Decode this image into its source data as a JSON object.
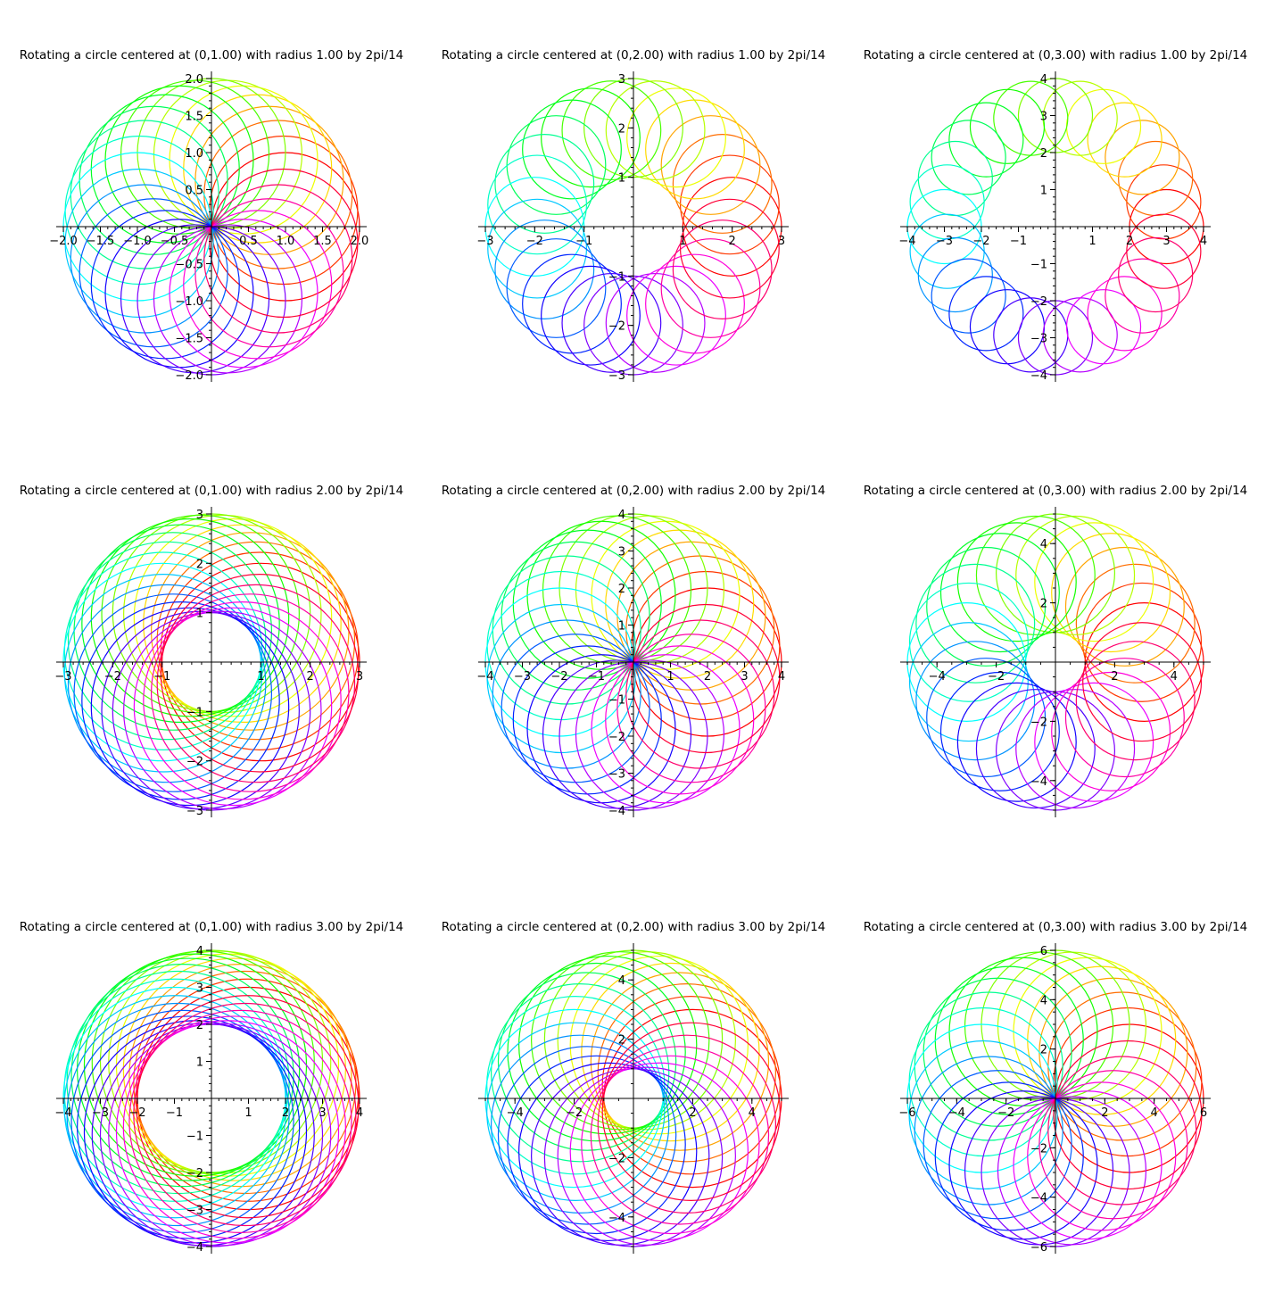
{
  "chart_data": [
    {
      "type": "line",
      "title": "Rotating a circle centered at (0,1.00) with radius 1.00 by 2pi/14",
      "center_offset": 1,
      "radius": 1,
      "rotations": 28,
      "step": "2pi/14",
      "xlim": [
        -2,
        2
      ],
      "ylim": [
        -2,
        2
      ],
      "xticks": [
        -2,
        -1.5,
        -1,
        -0.5,
        0.5,
        1,
        1.5,
        2
      ],
      "xtick_labels": [
        "−2.0",
        "−1.5",
        "−1.0",
        "−0.5",
        "0.5",
        "1.0",
        "1.5",
        "2.0"
      ],
      "yticks": [
        -2,
        -1.5,
        -1,
        -0.5,
        0.5,
        1,
        1.5,
        2
      ],
      "ytick_labels": [
        "−2.0",
        "−1.5",
        "−1.0",
        "−0.5",
        "0.5",
        "1.0",
        "1.5",
        "2.0"
      ],
      "minor": 0.1
    },
    {
      "type": "line",
      "title": "Rotating a circle centered at (0,2.00) with radius 1.00 by 2pi/14",
      "center_offset": 2,
      "radius": 1,
      "rotations": 28,
      "step": "2pi/14",
      "xlim": [
        -3,
        3
      ],
      "ylim": [
        -3,
        3
      ],
      "xticks": [
        -3,
        -2,
        -1,
        1,
        2,
        3
      ],
      "xtick_labels": [
        "−3",
        "−2",
        "−1",
        "1",
        "2",
        "3"
      ],
      "yticks": [
        -3,
        -2,
        -1,
        1,
        2,
        3
      ],
      "ytick_labels": [
        "−3",
        "−2",
        "−1",
        "1",
        "2",
        "3"
      ],
      "minor": 0.2
    },
    {
      "type": "line",
      "title": "Rotating a circle centered at (0,3.00) with radius 1.00 by 2pi/14",
      "center_offset": 3,
      "radius": 1,
      "rotations": 28,
      "step": "2pi/14",
      "xlim": [
        -4,
        4
      ],
      "ylim": [
        -4,
        4
      ],
      "xticks": [
        -4,
        -3,
        -2,
        -1,
        1,
        2,
        3,
        4
      ],
      "xtick_labels": [
        "−4",
        "−3",
        "−2",
        "−1",
        "1",
        "2",
        "3",
        "4"
      ],
      "yticks": [
        -4,
        -3,
        -2,
        -1,
        1,
        2,
        3,
        4
      ],
      "ytick_labels": [
        "−4",
        "−3",
        "−2",
        "−1",
        "1",
        "2",
        "3",
        "4"
      ],
      "minor": 0.2
    },
    {
      "type": "line",
      "title": "Rotating a circle centered at (0,1.00) with radius 2.00 by 2pi/14",
      "center_offset": 1,
      "radius": 2,
      "rotations": 28,
      "step": "2pi/14",
      "xlim": [
        -3,
        3
      ],
      "ylim": [
        -3,
        3
      ],
      "xticks": [
        -3,
        -2,
        -1,
        1,
        2,
        3
      ],
      "xtick_labels": [
        "−3",
        "−2",
        "−1",
        "1",
        "2",
        "3"
      ],
      "yticks": [
        -3,
        -2,
        -1,
        1,
        2,
        3
      ],
      "ytick_labels": [
        "−3",
        "−2",
        "−1",
        "1",
        "2",
        "3"
      ],
      "minor": 0.2
    },
    {
      "type": "line",
      "title": "Rotating a circle centered at (0,2.00) with radius 2.00 by 2pi/14",
      "center_offset": 2,
      "radius": 2,
      "rotations": 28,
      "step": "2pi/14",
      "xlim": [
        -4,
        4
      ],
      "ylim": [
        -4,
        4
      ],
      "xticks": [
        -4,
        -3,
        -2,
        -1,
        1,
        2,
        3,
        4
      ],
      "xtick_labels": [
        "−4",
        "−3",
        "−2",
        "−1",
        "1",
        "2",
        "3",
        "4"
      ],
      "yticks": [
        -4,
        -3,
        -2,
        -1,
        1,
        2,
        3,
        4
      ],
      "ytick_labels": [
        "−4",
        "−3",
        "−2",
        "−1",
        "1",
        "2",
        "3",
        "4"
      ],
      "minor": 0.2
    },
    {
      "type": "line",
      "title": "Rotating a circle centered at (0,3.00) with radius 2.00 by 2pi/14",
      "center_offset": 3,
      "radius": 2,
      "rotations": 28,
      "step": "2pi/14",
      "xlim": [
        -5,
        5
      ],
      "ylim": [
        -5,
        5
      ],
      "xticks": [
        -4,
        -2,
        2,
        4
      ],
      "xtick_labels": [
        "−4",
        "−2",
        "2",
        "4"
      ],
      "yticks": [
        -4,
        -2,
        2,
        4
      ],
      "ytick_labels": [
        "−4",
        "−2",
        "2",
        "4"
      ],
      "minor": 0.5
    },
    {
      "type": "line",
      "title": "Rotating a circle centered at (0,1.00) with radius 3.00 by 2pi/14",
      "center_offset": 1,
      "radius": 3,
      "rotations": 28,
      "step": "2pi/14",
      "xlim": [
        -4,
        4
      ],
      "ylim": [
        -4,
        4
      ],
      "xticks": [
        -4,
        -3,
        -2,
        -1,
        1,
        2,
        3,
        4
      ],
      "xtick_labels": [
        "−4",
        "−3",
        "−2",
        "−1",
        "1",
        "2",
        "3",
        "4"
      ],
      "yticks": [
        -4,
        -3,
        -2,
        -1,
        1,
        2,
        3,
        4
      ],
      "ytick_labels": [
        "−4",
        "−3",
        "−2",
        "−1",
        "1",
        "2",
        "3",
        "4"
      ],
      "minor": 0.2
    },
    {
      "type": "line",
      "title": "Rotating a circle centered at (0,2.00) with radius 3.00 by 2pi/14",
      "center_offset": 2,
      "radius": 3,
      "rotations": 28,
      "step": "2pi/14",
      "xlim": [
        -5,
        5
      ],
      "ylim": [
        -5,
        5
      ],
      "xticks": [
        -4,
        -2,
        2,
        4
      ],
      "xtick_labels": [
        "−4",
        "−2",
        "2",
        "4"
      ],
      "yticks": [
        -4,
        -2,
        2,
        4
      ],
      "ytick_labels": [
        "−4",
        "−2",
        "2",
        "4"
      ],
      "minor": 0.5
    },
    {
      "type": "line",
      "title": "Rotating a circle centered at (0,3.00) with radius 3.00 by 2pi/14",
      "center_offset": 3,
      "radius": 3,
      "rotations": 28,
      "step": "2pi/14",
      "xlim": [
        -6,
        6
      ],
      "ylim": [
        -6,
        6
      ],
      "xticks": [
        -6,
        -4,
        -2,
        2,
        4,
        6
      ],
      "xtick_labels": [
        "−6",
        "−4",
        "−2",
        "2",
        "4",
        "6"
      ],
      "yticks": [
        -6,
        -4,
        -2,
        2,
        4,
        6
      ],
      "ytick_labels": [
        "−6",
        "−4",
        "−2",
        "2",
        "4",
        "6"
      ],
      "minor": 0.5
    }
  ]
}
